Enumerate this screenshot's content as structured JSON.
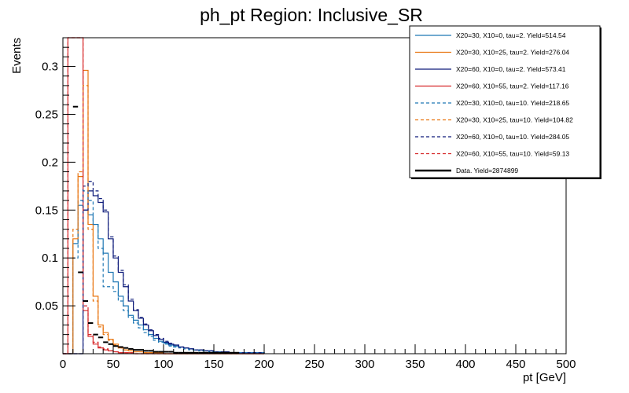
{
  "chart_data": {
    "type": "line",
    "title": "ph_pt Region: Inclusive_SR",
    "xlabel": "pt [GeV]",
    "ylabel": "Events",
    "xlim": [
      0,
      500
    ],
    "ylim": [
      0,
      0.33
    ],
    "x_ticks": [
      0,
      50,
      100,
      150,
      200,
      250,
      300,
      350,
      400,
      450,
      500
    ],
    "x_tick_labels": [
      "0",
      "50",
      "100",
      "150",
      "200",
      "250",
      "300",
      "350",
      "400",
      "450",
      "500"
    ],
    "y_ticks": [
      0.05,
      0.1,
      0.15,
      0.2,
      0.25,
      0.3
    ],
    "y_tick_labels": [
      "0.05",
      "0.1",
      "0.15",
      "0.2",
      "0.25",
      "0.3"
    ],
    "grid": false,
    "legend_position": "top-right",
    "bin_edges": [
      0,
      5,
      10,
      15,
      20,
      25,
      30,
      35,
      40,
      45,
      50,
      55,
      60,
      65,
      70,
      75,
      80,
      85,
      90,
      95,
      100,
      105,
      110,
      115,
      120,
      125,
      130,
      135,
      140,
      145,
      150,
      155,
      160,
      165,
      170,
      175,
      180,
      185,
      190,
      195,
      200
    ],
    "series": [
      {
        "name": "X20=30, X10=0, tau=2. Yield=514.54",
        "color": "#1f77b4",
        "style": "solid",
        "values": [
          0.0,
          0.0,
          0.115,
          0.155,
          0.15,
          0.145,
          0.135,
          0.12,
          0.105,
          0.085,
          0.075,
          0.06,
          0.05,
          0.04,
          0.035,
          0.03,
          0.025,
          0.02,
          0.016,
          0.013,
          0.011,
          0.009,
          0.008,
          0.007,
          0.006,
          0.005,
          0.004,
          0.004,
          0.003,
          0.003,
          0.002,
          0.002,
          0.002,
          0.001,
          0.001,
          0.001,
          0.001,
          0.001,
          0.001,
          0.001
        ]
      },
      {
        "name": "X20=30, X10=25, tau=2. Yield=276.04",
        "color": "#e8740f",
        "style": "solid",
        "values": [
          0.0,
          0.0,
          0.12,
          0.185,
          0.296,
          0.135,
          0.06,
          0.03,
          0.022,
          0.015,
          0.01,
          0.006,
          0.004,
          0.003,
          0.002,
          0.002,
          0.001,
          0.001,
          0.001,
          0.001,
          0,
          0,
          0,
          0,
          0,
          0,
          0,
          0,
          0,
          0,
          0,
          0,
          0,
          0,
          0,
          0,
          0,
          0,
          0,
          0
        ]
      },
      {
        "name": "X20=60, X10=0, tau=2. Yield=573.41",
        "color": "#0d1b7a",
        "style": "solid",
        "values": [
          0.0,
          0.0,
          0.0,
          0.0,
          0.15,
          0.17,
          0.165,
          0.158,
          0.148,
          0.12,
          0.1,
          0.085,
          0.07,
          0.055,
          0.045,
          0.037,
          0.03,
          0.024,
          0.019,
          0.015,
          0.012,
          0.01,
          0.009,
          0.007,
          0.006,
          0.005,
          0.004,
          0.004,
          0.003,
          0.003,
          0.002,
          0.002,
          0.002,
          0.001,
          0.001,
          0.001,
          0.001,
          0.001,
          0.001,
          0.001
        ]
      },
      {
        "name": "X20=60, X10=55, tau=2. Yield=117.16",
        "color": "#d62728",
        "style": "solid",
        "values": [
          0.0,
          0.33,
          0.33,
          0.33,
          0.045,
          0.018,
          0.01,
          0.006,
          0.004,
          0.003,
          0.002,
          0.001,
          0.001,
          0.001,
          0,
          0,
          0,
          0,
          0,
          0,
          0,
          0,
          0,
          0,
          0,
          0,
          0,
          0,
          0,
          0,
          0,
          0,
          0,
          0,
          0,
          0,
          0,
          0,
          0,
          0
        ]
      },
      {
        "name": "X20=30, X10=0, tau=10. Yield=218.65",
        "color": "#1f77b4",
        "style": "dashed",
        "values": [
          0.0,
          0.0,
          0.1,
          0.16,
          0.17,
          0.16,
          0.135,
          0.11,
          0.07,
          0.07,
          0.065,
          0.055,
          0.045,
          0.038,
          0.032,
          0.027,
          0.022,
          0.018,
          0.014,
          0.012,
          0.01,
          0.008,
          0.007,
          0.006,
          0.005,
          0.004,
          0.004,
          0.003,
          0.003,
          0.002,
          0.002,
          0.002,
          0.001,
          0.001,
          0.001,
          0.001,
          0.001,
          0.001,
          0.001,
          0.001
        ]
      },
      {
        "name": "X20=30, X10=25, tau=10. Yield=104.82",
        "color": "#e8740f",
        "style": "dashed",
        "values": [
          0.0,
          0.0,
          0.13,
          0.19,
          0.28,
          0.13,
          0.055,
          0.028,
          0.02,
          0.014,
          0.009,
          0.006,
          0.004,
          0.003,
          0.002,
          0.002,
          0.001,
          0.001,
          0.001,
          0.001,
          0,
          0,
          0,
          0,
          0,
          0,
          0,
          0,
          0,
          0,
          0,
          0,
          0,
          0,
          0,
          0,
          0,
          0,
          0,
          0
        ]
      },
      {
        "name": "X20=60, X10=0, tau=10. Yield=284.05",
        "color": "#0d1b7a",
        "style": "dashed",
        "values": [
          0.0,
          0.0,
          0.0,
          0.0,
          0.175,
          0.18,
          0.17,
          0.162,
          0.15,
          0.122,
          0.102,
          0.087,
          0.072,
          0.057,
          0.046,
          0.038,
          0.031,
          0.025,
          0.02,
          0.016,
          0.013,
          0.011,
          0.009,
          0.007,
          0.006,
          0.005,
          0.004,
          0.004,
          0.003,
          0.003,
          0.002,
          0.002,
          0.002,
          0.001,
          0.001,
          0.001,
          0.001,
          0.001,
          0.001,
          0.001
        ]
      },
      {
        "name": "X20=60, X10=55, tau=10. Yield=59.13",
        "color": "#d62728",
        "style": "dashed",
        "values": [
          0.0,
          0.33,
          0.33,
          0.33,
          0.05,
          0.02,
          0.012,
          0.007,
          0.005,
          0.003,
          0.002,
          0.001,
          0.001,
          0.001,
          0,
          0,
          0,
          0,
          0,
          0,
          0,
          0,
          0,
          0,
          0,
          0,
          0,
          0,
          0,
          0,
          0,
          0,
          0,
          0,
          0,
          0,
          0,
          0,
          0,
          0
        ]
      }
    ],
    "data_series": {
      "name": "Data. Yield=2874899",
      "color": "#000000",
      "x": [
        2.5,
        7.5,
        12.5,
        17.5,
        22.5,
        27.5,
        32.5,
        37.5,
        42.5,
        47.5,
        52.5,
        57.5,
        62.5,
        67.5,
        72.5,
        77.5,
        82.5,
        87.5,
        92.5,
        97.5,
        102.5,
        107.5,
        112.5,
        117.5,
        122.5,
        127.5,
        132.5,
        137.5,
        142.5,
        147.5,
        152.5,
        157.5,
        162.5,
        167.5,
        172.5,
        177.5,
        182.5,
        187.5,
        192.5,
        197.5,
        250,
        300,
        350,
        400,
        450,
        500
      ],
      "y": [
        0,
        0,
        0.258,
        0.085,
        0.055,
        0.032,
        0.02,
        0.017,
        0.012,
        0.01,
        0.008,
        0.007,
        0.006,
        0.005,
        0.004,
        0.004,
        0.003,
        0.003,
        0.002,
        0.002,
        0.002,
        0.002,
        0.001,
        0.001,
        0.001,
        0.001,
        0.001,
        0.001,
        0.001,
        0.001,
        0.001,
        0.001,
        0.001,
        0.001,
        0.001,
        0,
        0,
        0,
        0,
        0,
        0,
        0,
        0,
        0,
        0,
        0
      ]
    }
  }
}
